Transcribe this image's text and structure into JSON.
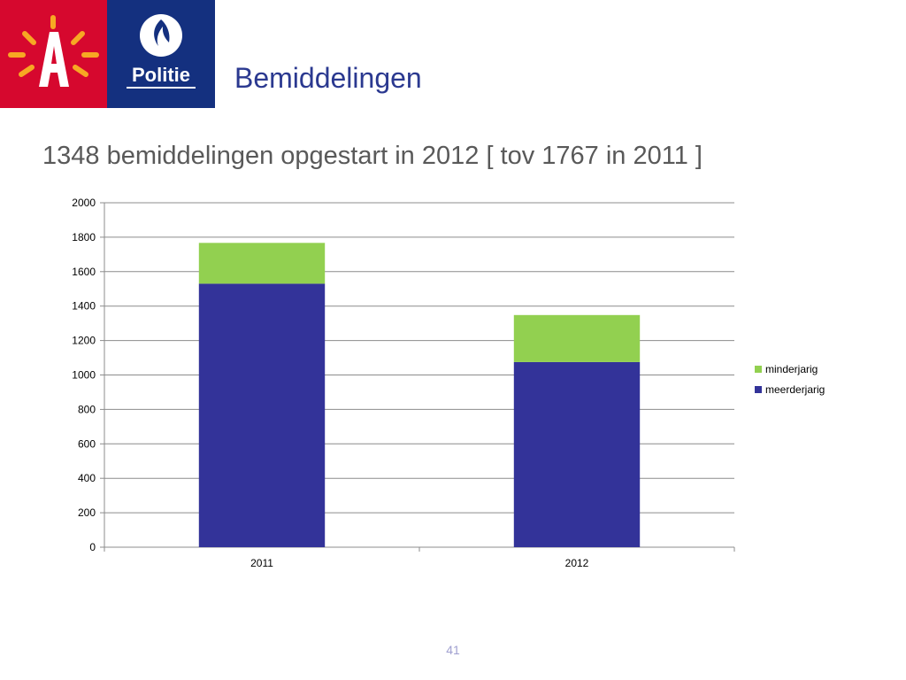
{
  "header": {
    "logos": [
      {
        "name": "antwerp-logo",
        "text": "A",
        "color": "#d6082e"
      },
      {
        "name": "politie-logo",
        "text": "Politie",
        "color": "#14307f"
      }
    ],
    "title": "Bemiddelingen"
  },
  "subtitle": "1348 bemiddelingen opgestart in 2012 [ tov 1767 in 2011 ]",
  "chart_data": {
    "type": "bar",
    "stacked": true,
    "categories": [
      "2011",
      "2012"
    ],
    "series": [
      {
        "name": "meerderjarig",
        "values": [
          1530,
          1075
        ],
        "color": "#333399"
      },
      {
        "name": "minderjarig",
        "values": [
          237,
          273
        ],
        "color": "#92d050"
      }
    ],
    "ylim": [
      0,
      2000
    ],
    "yticks": [
      0,
      200,
      400,
      600,
      800,
      1000,
      1200,
      1400,
      1600,
      1800,
      2000
    ],
    "grid": true,
    "legend": {
      "placement": "right",
      "order": [
        "minderjarig",
        "meerderjarig"
      ]
    }
  },
  "footer": {
    "page_number": "41"
  }
}
